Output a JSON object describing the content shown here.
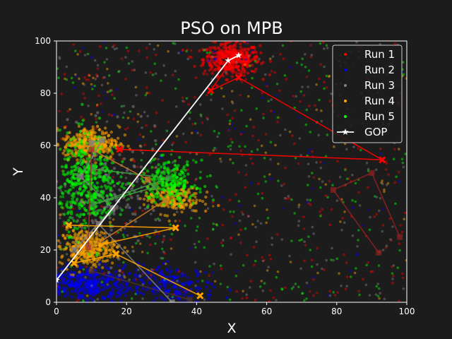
{
  "chart_data": {
    "type": "scatter",
    "title": "PSO on MPB",
    "xlabel": "X",
    "ylabel": "Y",
    "xlim": [
      0,
      100
    ],
    "ylim": [
      0,
      100
    ],
    "xticks": [
      "0",
      "20",
      "40",
      "60",
      "80",
      "100"
    ],
    "yticks": [
      "0",
      "20",
      "40",
      "60",
      "80",
      "100"
    ],
    "grid": false,
    "legend_position": "top-right",
    "legend": [
      {
        "label": "Run 1",
        "color": "#ff0000",
        "marker": "dot"
      },
      {
        "label": "Run 2",
        "color": "#0000ff",
        "marker": "dot"
      },
      {
        "label": "Run 3",
        "color": "#808080",
        "marker": "dot"
      },
      {
        "label": "Run 4",
        "color": "#ffa500",
        "marker": "dot"
      },
      {
        "label": "Run 5",
        "color": "#00ff00",
        "marker": "dot"
      },
      {
        "label": "GOP",
        "color": "#ffffff",
        "marker": "star-line"
      }
    ],
    "background_scatter": [
      {
        "name": "Run 1",
        "color": "#ff0000",
        "clusters": [
          {
            "cx": 50,
            "cy": 93,
            "sx": 4,
            "sy": 3,
            "n": 420
          }
        ],
        "uniform_n": 380
      },
      {
        "name": "Run 2",
        "color": "#0000ff",
        "clusters": [
          {
            "cx": 8,
            "cy": 7,
            "sx": 7,
            "sy": 3.5,
            "n": 380
          },
          {
            "cx": 33,
            "cy": 6,
            "sx": 6,
            "sy": 4,
            "n": 180
          }
        ],
        "uniform_n": 90
      },
      {
        "name": "Run 3",
        "color": "#808080",
        "clusters": [
          {
            "cx": 15,
            "cy": 40,
            "sx": 8,
            "sy": 12,
            "n": 200
          }
        ],
        "uniform_n": 260
      },
      {
        "name": "Run 4",
        "color": "#ffa500",
        "clusters": [
          {
            "cx": 10,
            "cy": 61,
            "sx": 4,
            "sy": 3,
            "n": 320
          },
          {
            "cx": 9,
            "cy": 21,
            "sx": 4,
            "sy": 3.5,
            "n": 320
          },
          {
            "cx": 33,
            "cy": 40,
            "sx": 4,
            "sy": 3,
            "n": 200
          }
        ],
        "uniform_n": 120
      },
      {
        "name": "Run 5",
        "color": "#00ff00",
        "clusters": [
          {
            "cx": 9,
            "cy": 46,
            "sx": 4,
            "sy": 9,
            "n": 420
          },
          {
            "cx": 32,
            "cy": 46,
            "sx": 4,
            "sy": 4,
            "n": 220
          }
        ],
        "uniform_n": 260
      }
    ],
    "trajectories": [
      {
        "name": "Run 1",
        "color": "#ff0000",
        "marker": "x",
        "points": [
          [
            18,
            58.5
          ],
          [
            93,
            54.5
          ],
          [
            52,
            86
          ],
          [
            44,
            81
          ],
          [
            50,
            92.5
          ]
        ]
      },
      {
        "name": "Run 1 (old)",
        "color": "#8b2020",
        "marker": "square",
        "points": [
          [
            98,
            25
          ],
          [
            90,
            49.5
          ],
          [
            79,
            43
          ],
          [
            92,
            19
          ]
        ]
      },
      {
        "name": "Run 2",
        "color": "#4a3030",
        "marker": "square",
        "points": [
          [
            10,
            12
          ],
          [
            38,
            1
          ]
        ]
      },
      {
        "name": "Run 3",
        "color": "#808080",
        "marker": "square",
        "points": [
          [
            10,
            61
          ],
          [
            13,
            62
          ],
          [
            7,
            48
          ],
          [
            16,
            36
          ],
          [
            5,
            20
          ],
          [
            12,
            30
          ],
          [
            33,
            0
          ]
        ]
      },
      {
        "name": "Run 4",
        "color": "#ffa500",
        "marker": "x",
        "points": [
          [
            3.5,
            29.5
          ],
          [
            34,
            28.5
          ],
          [
            9,
            21
          ],
          [
            5,
            15
          ],
          [
            17,
            18.5
          ],
          [
            41,
            2.5
          ]
        ]
      },
      {
        "name": "Run 4 (old)",
        "color": "#cc7a20",
        "marker": "square",
        "points": [
          [
            10,
            58.5
          ],
          [
            26,
            47
          ],
          [
            31,
            39
          ],
          [
            10,
            21
          ]
        ]
      },
      {
        "name": "Run 5",
        "color": "#40a040",
        "marker": "square",
        "points": [
          [
            10.5,
            51
          ],
          [
            32,
            47.5
          ],
          [
            10.5,
            37.5
          ],
          [
            28,
            44
          ]
        ]
      },
      {
        "name": "Run 1 (mid)",
        "color": "#a03030",
        "marker": "square",
        "points": [
          [
            10,
            58.5
          ],
          [
            9,
            21
          ]
        ]
      }
    ],
    "gop": {
      "name": "GOP",
      "color": "#ffffff",
      "marker": "star",
      "points": [
        [
          0,
          8.5
        ],
        [
          49,
          92.5
        ],
        [
          52,
          94.5
        ]
      ]
    }
  }
}
